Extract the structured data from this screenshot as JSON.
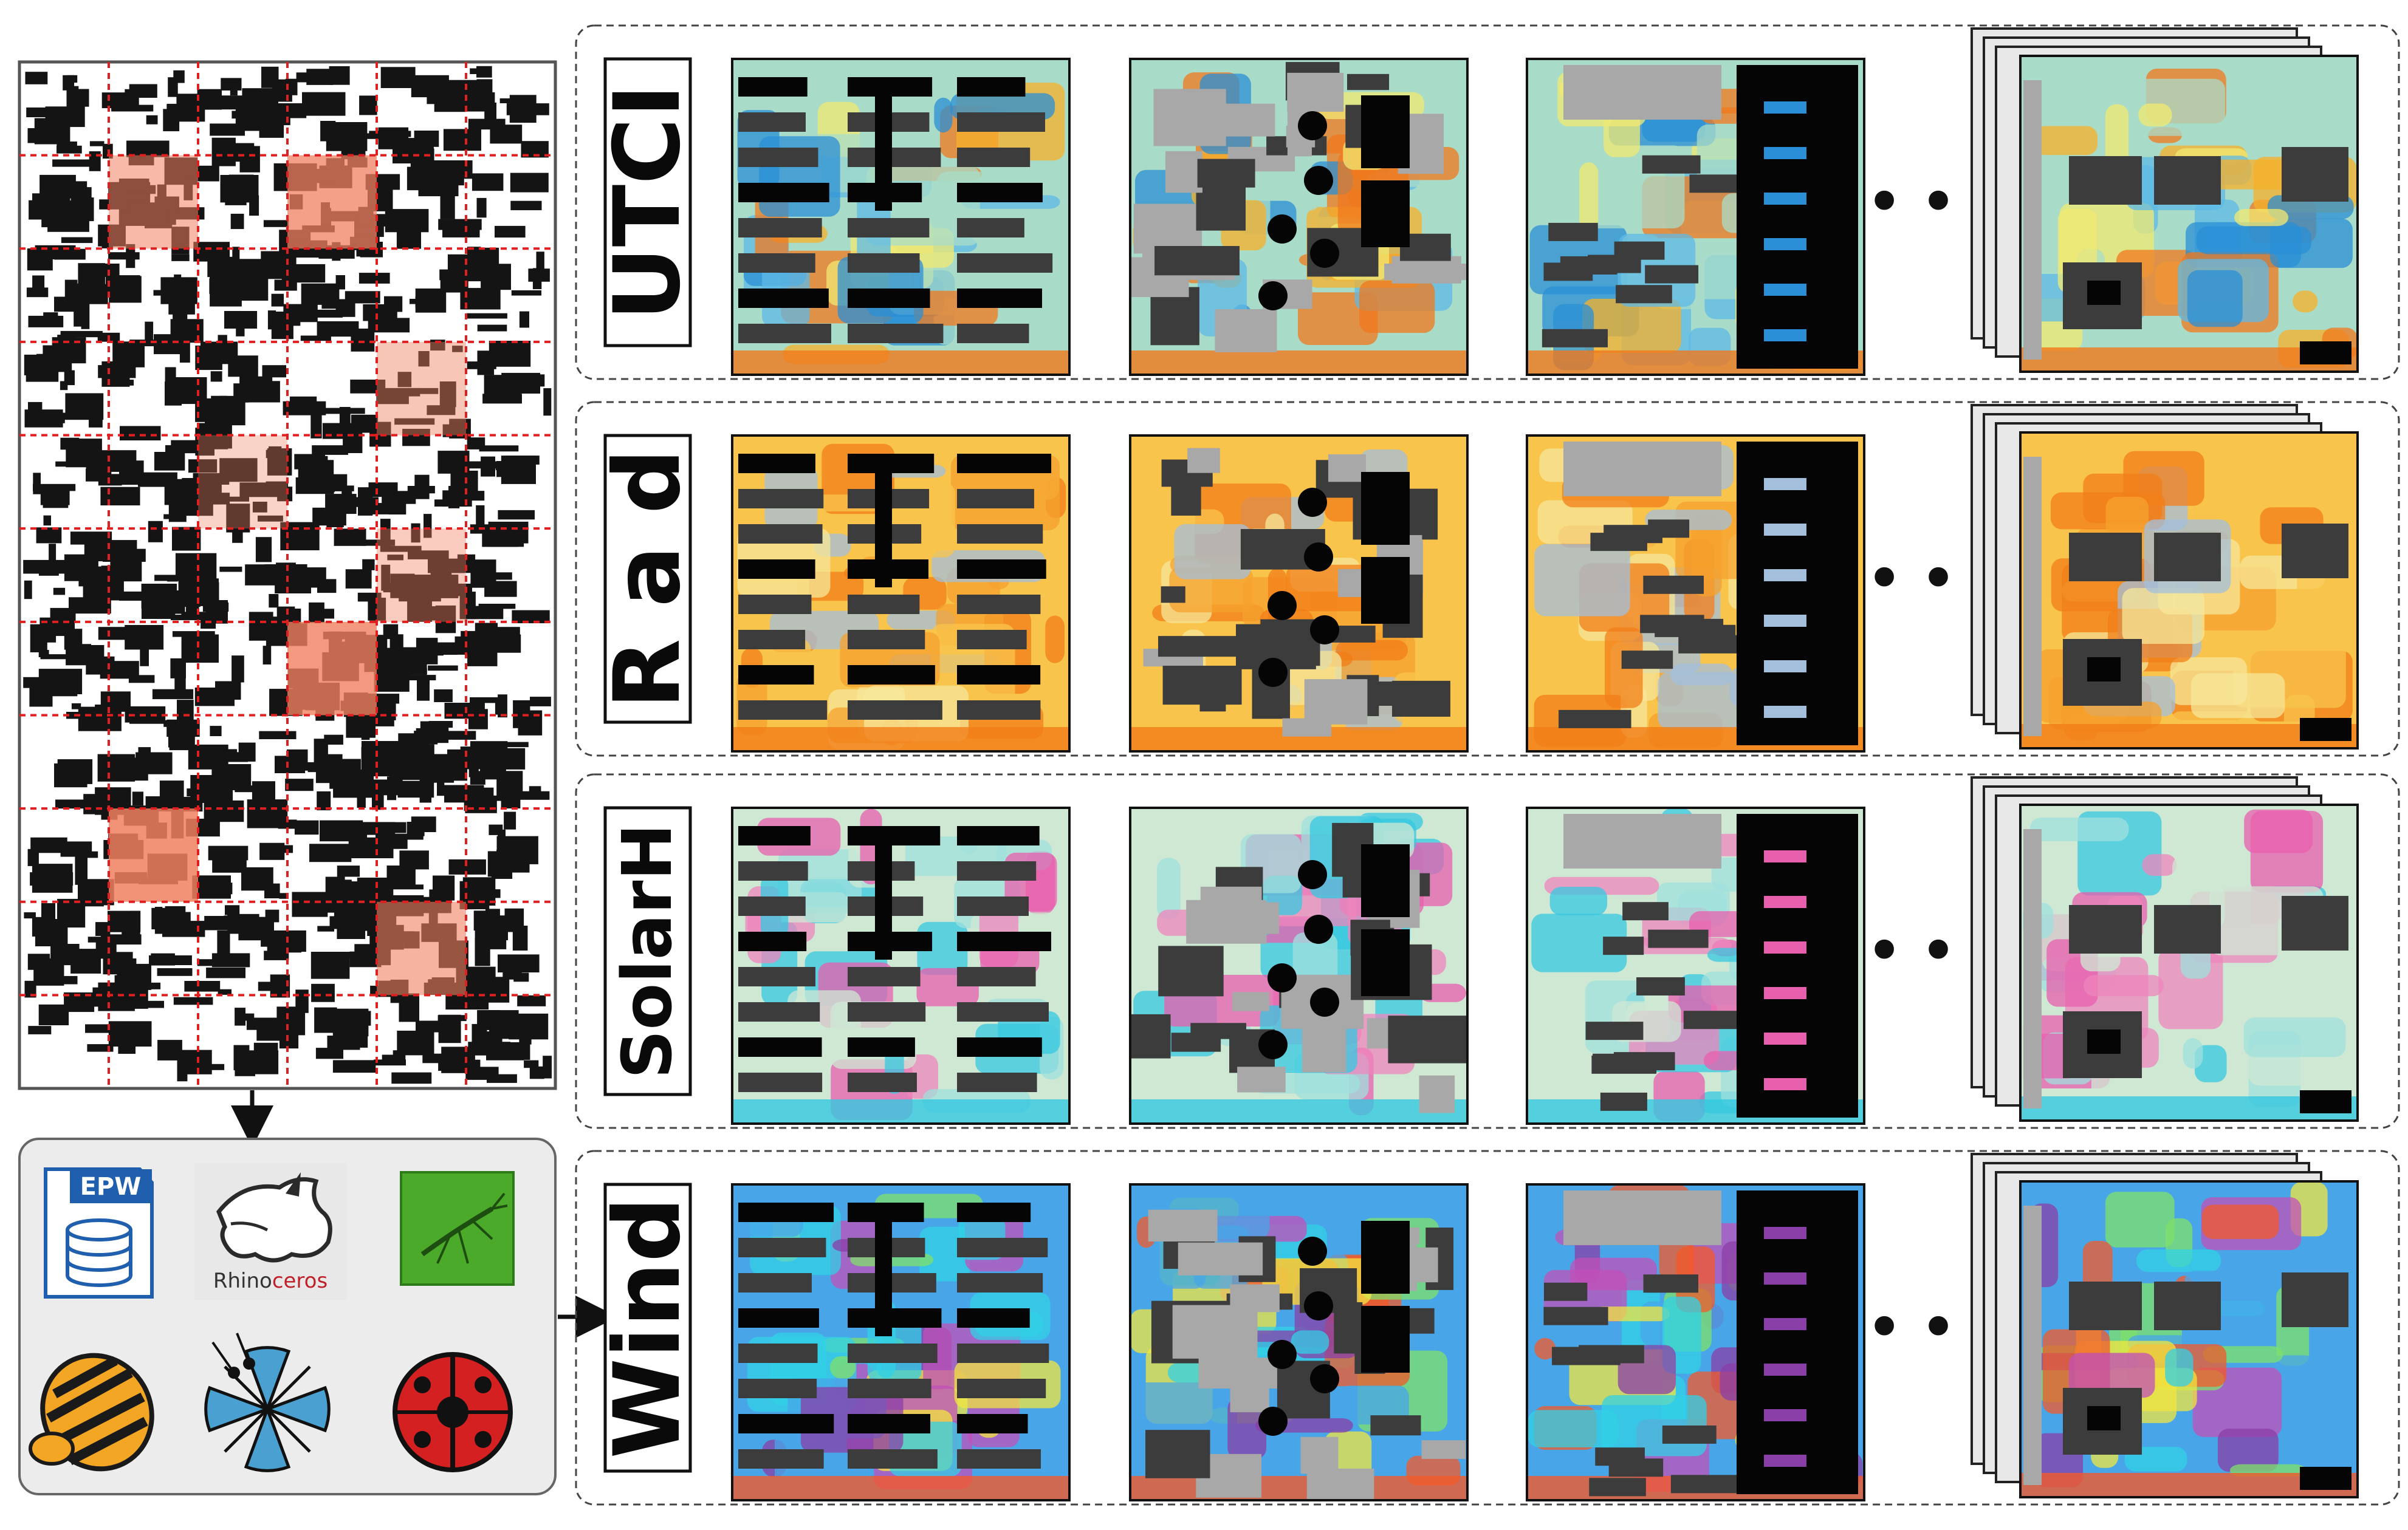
{
  "rows": [
    {
      "label": "UTCI",
      "palette": "utci",
      "colors": [
        "#2a8fd6",
        "#5fb9e6",
        "#a9dcc8",
        "#f2ea72",
        "#f7b02a",
        "#f0781c"
      ]
    },
    {
      "label": "R a d",
      "palette": "rad",
      "colors": [
        "#a3bfdc",
        "#f7e79a",
        "#f8c44c",
        "#f6a22e",
        "#f17d18"
      ]
    },
    {
      "label": "SolarH",
      "palette": "solar",
      "colors": [
        "#e85fae",
        "#ee86bc",
        "#cfe8d4",
        "#9fe0dc",
        "#35c8e0"
      ]
    },
    {
      "label": "Wind",
      "palette": "wind",
      "colors": [
        "#8a3fa8",
        "#c050b8",
        "#48a6e8",
        "#31d0e6",
        "#7fe06a",
        "#f2e640",
        "#f25a2a"
      ]
    }
  ],
  "ellipsis": "• • •",
  "tools": {
    "epw_label": "EPW",
    "rhino_label_dark": "Rhino",
    "rhino_label_red": "ceros"
  },
  "colors": {
    "grid_dashed": "#e02020",
    "building": "#141414",
    "highlight": "#f08060",
    "panel_bg": "#ececec",
    "block_dark": "#3c3c3c",
    "block_gray": "#a8a8a8"
  }
}
